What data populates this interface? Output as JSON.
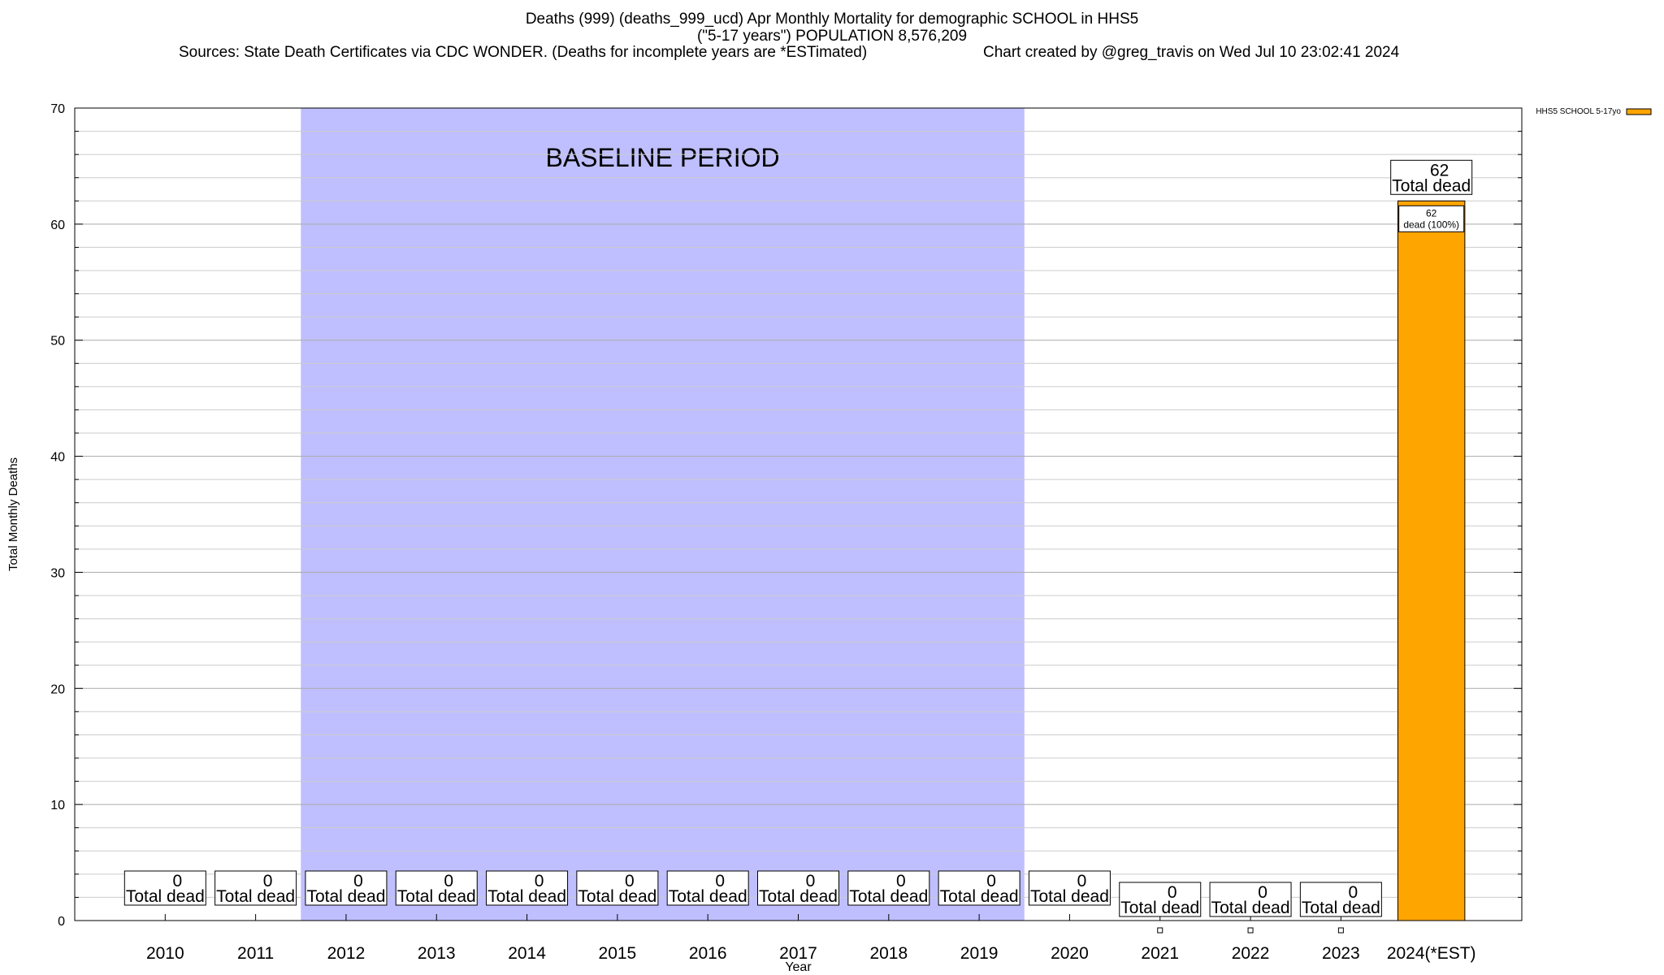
{
  "header": {
    "title_line1": "Deaths (999) (deaths_999_ucd) Apr Monthly Mortality for demographic SCHOOL in HHS5",
    "title_line2": "(\"5-17 years\") POPULATION 8,576,209",
    "sources": "Sources: State Death Certificates via CDC WONDER. (Deaths for incomplete years are *ESTimated)",
    "credit": "Chart created by @greg_travis on Wed Jul 10 23:02:41 2024"
  },
  "chart_data": {
    "type": "bar",
    "xlabel": "Year",
    "ylabel": "Total Monthly Deaths",
    "ylim": [
      0,
      70
    ],
    "yticks": [
      0,
      10,
      20,
      30,
      40,
      50,
      60,
      70
    ],
    "categories": [
      "2010",
      "2011",
      "2012",
      "2013",
      "2014",
      "2015",
      "2016",
      "2017",
      "2018",
      "2019",
      "2020",
      "2021",
      "2022",
      "2023",
      "2024(*EST)"
    ],
    "series": [
      {
        "name": "HHS5 SCHOOL 5-17yo",
        "color": "#ffa500",
        "values": [
          0,
          0,
          0,
          0,
          0,
          0,
          0,
          0,
          0,
          0,
          0,
          0,
          0,
          0,
          62
        ]
      }
    ],
    "total_label": "Total dead",
    "segment_label_text": "dead (100%)",
    "baseline": {
      "label": "BASELINE PERIOD",
      "from": "2012",
      "to": "2019",
      "color": "#bfbfff"
    },
    "legend_position": "top-right",
    "grid": true
  }
}
